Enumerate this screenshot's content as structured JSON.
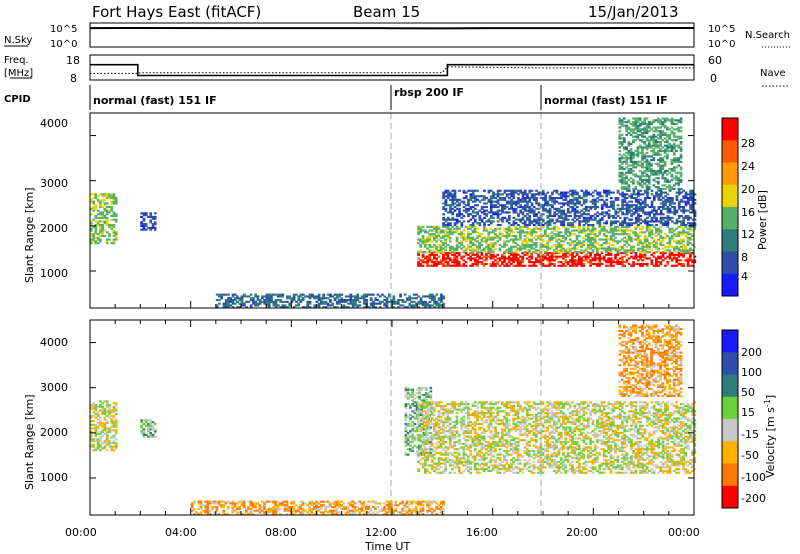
{
  "header": {
    "radar": "Fort Hays East (fitACF)",
    "beam": "Beam 15",
    "date": "15/Jan/2013"
  },
  "noise_panel": {
    "left_label": "N.Sky",
    "right_label": "N.Search",
    "left_ticks": [
      "10^5",
      "10^0"
    ],
    "right_ticks": [
      "10^5",
      "10^0"
    ]
  },
  "freq_panel": {
    "left_label_1": "Freq.",
    "left_label_2": "[MHz]",
    "right_label": "Nave",
    "left_ticks": [
      "18",
      "8"
    ],
    "right_ticks": [
      "60",
      "0"
    ]
  },
  "cpid_panel": {
    "label": "CPID",
    "modes": [
      "normal (fast) 151 IF",
      "rbsp 200 IF",
      "normal (fast) 151 IF"
    ]
  },
  "power_panel": {
    "ylabel": "Slant Range [km]",
    "yticks": [
      "4000",
      "3000",
      "2000",
      "1000"
    ],
    "cbar_label": "Power [dB]",
    "cbar_ticks": [
      "28",
      "24",
      "20",
      "16",
      "12",
      "8",
      "4"
    ]
  },
  "velocity_panel": {
    "ylabel": "Slant Range [km]",
    "yticks": [
      "4000",
      "3000",
      "2000",
      "1000"
    ],
    "cbar_label": "Velocity [m s",
    "cbar_label_sup": "-1",
    "cbar_label_end": "]",
    "cbar_ticks": [
      "200",
      "100",
      "50",
      "15",
      "-15",
      "-50",
      "-100",
      "-200"
    ]
  },
  "xaxis": {
    "label": "Time UT",
    "ticks": [
      "00:00",
      "04:00",
      "08:00",
      "12:00",
      "16:00",
      "20:00",
      "00:00"
    ]
  },
  "colors": {
    "power_scale": [
      "#1a1aff",
      "#2d4fa8",
      "#2f7d7a",
      "#55b06a",
      "#e8d400",
      "#ff9a00",
      "#ff5a00",
      "#ff0000"
    ],
    "velocity_scale": [
      "#1a1aff",
      "#2d4fa8",
      "#2f7d7a",
      "#6ad13d",
      "#c8c8c8",
      "#ffb000",
      "#ff7a00",
      "#ff0000"
    ]
  },
  "chart_data": [
    {
      "type": "line",
      "title": "Fort Hays East (fitACF)",
      "series": [
        {
          "name": "N.Sky",
          "x": [
            0,
            1.5,
            6,
            10,
            12,
            14,
            16,
            20,
            24
          ],
          "y": [
            50000,
            52000,
            48000,
            50000,
            45000,
            40000,
            48000,
            50000,
            52000
          ]
        }
      ]
    },
    {
      "type": "line",
      "series": [
        {
          "name": "Freq.",
          "x": [
            0,
            1.9,
            1.9,
            14.2,
            14.2,
            24
          ],
          "y": [
            16.5,
            16.5,
            10.5,
            10.5,
            16.5,
            16.5
          ]
        },
        {
          "name": "Nave",
          "x": [
            0,
            1.9,
            2,
            14,
            14.2,
            18,
            24
          ],
          "y": [
            18,
            18,
            20,
            20,
            36,
            33,
            33
          ]
        }
      ]
    },
    {
      "type": "heatmap",
      "ylabel": "Slant Range [km]",
      "xlabel": "Time UT",
      "xlim": [
        0,
        24
      ],
      "ylim": [
        180,
        4500
      ],
      "zlabel": "Power [dB]",
      "zlim": [
        0,
        30
      ],
      "echo_regions": [
        {
          "t0": 0.0,
          "t1": 1.0,
          "r0": 1600,
          "r1": 2700,
          "value": 14
        },
        {
          "t0": 2.0,
          "t1": 2.6,
          "r0": 1900,
          "r1": 2300,
          "value": 5
        },
        {
          "t0": 5.0,
          "t1": 14.0,
          "r0": 180,
          "r1": 500,
          "value": 8
        },
        {
          "t0": 13.0,
          "t1": 24.0,
          "r0": 1100,
          "r1": 1400,
          "value": 28
        },
        {
          "t0": 13.0,
          "t1": 24.0,
          "r0": 1400,
          "r1": 2000,
          "value": 14
        },
        {
          "t0": 14.0,
          "t1": 24.0,
          "r0": 2000,
          "r1": 2800,
          "value": 6
        },
        {
          "t0": 21.0,
          "t1": 23.5,
          "r0": 2800,
          "r1": 4400,
          "value": 12
        }
      ]
    },
    {
      "type": "heatmap",
      "ylabel": "Slant Range [km]",
      "xlabel": "Time UT",
      "xlim": [
        0,
        24
      ],
      "ylim": [
        180,
        4500
      ],
      "zlabel": "Velocity [m s-1]",
      "zlim": [
        -250,
        250
      ],
      "echo_regions": [
        {
          "t0": 0.0,
          "t1": 1.0,
          "r0": 1600,
          "r1": 2700,
          "value": 0
        },
        {
          "t0": 2.0,
          "t1": 2.6,
          "r0": 1900,
          "r1": 2300,
          "value": 30
        },
        {
          "t0": 4.0,
          "t1": 14.0,
          "r0": 180,
          "r1": 500,
          "value": -40
        },
        {
          "t0": 12.5,
          "t1": 13.5,
          "r0": 1500,
          "r1": 3000,
          "value": 30
        },
        {
          "t0": 13.0,
          "t1": 24.0,
          "r0": 1100,
          "r1": 2700,
          "value": 0
        },
        {
          "t0": 21.0,
          "t1": 23.5,
          "r0": 2800,
          "r1": 4400,
          "value": -40
        }
      ]
    }
  ]
}
